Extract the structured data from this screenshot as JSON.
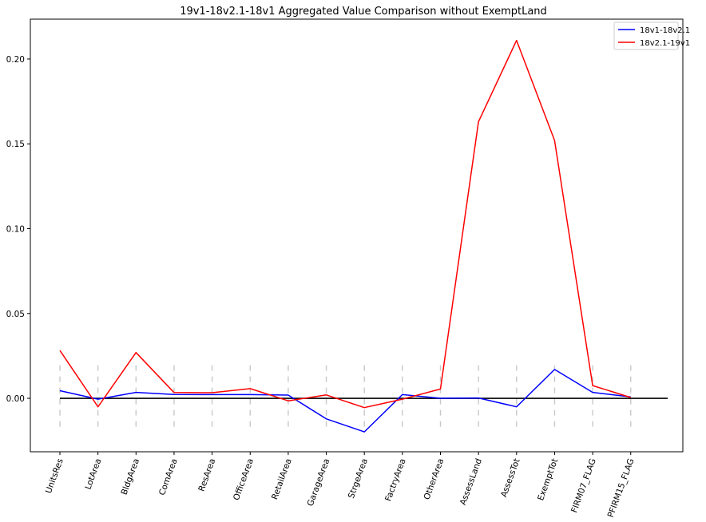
{
  "chart_data": {
    "type": "line",
    "title": "19v1-18v2.1-18v1 Aggregated Value Comparison without ExemptLand",
    "xlabel": "",
    "ylabel": "",
    "categories": [
      "UnitsRes",
      "LotArea",
      "BldgArea",
      "ComArea",
      "ResArea",
      "OfficeArea",
      "RetailArea",
      "GarageArea",
      "StrgeArea",
      "FactryArea",
      "OtherArea",
      "AssessLand",
      "AssessTot",
      "ExemptTot",
      "FIRM07_FLAG",
      "PFIRM15_FLAG"
    ],
    "series": [
      {
        "name": "18v1-18v2.1",
        "color": "#0000ff",
        "values": [
          0.0045,
          -0.0005,
          0.0035,
          0.0023,
          0.0022,
          0.0022,
          0.0019,
          -0.0121,
          -0.0198,
          0.0022,
          0.0,
          0.0002,
          -0.005,
          0.017,
          0.0035,
          0.0008
        ]
      },
      {
        "name": "18v2.1-19v1",
        "color": "#ff0000",
        "values": [
          0.0282,
          -0.005,
          0.027,
          0.0034,
          0.0033,
          0.0057,
          -0.0015,
          0.002,
          -0.0055,
          -0.0005,
          0.0055,
          0.163,
          0.211,
          0.152,
          0.0075,
          0.0005
        ]
      }
    ],
    "yticks": [
      0.0,
      0.05,
      0.1,
      0.15,
      0.2
    ],
    "ytick_labels": [
      "0.00",
      "0.05",
      "0.10",
      "0.15",
      "0.20"
    ],
    "ylim": [
      -0.0315,
      0.2235
    ],
    "zero_line": true,
    "category_guides": "dashed-vertical",
    "legend_position": "top-right",
    "grid": false
  }
}
